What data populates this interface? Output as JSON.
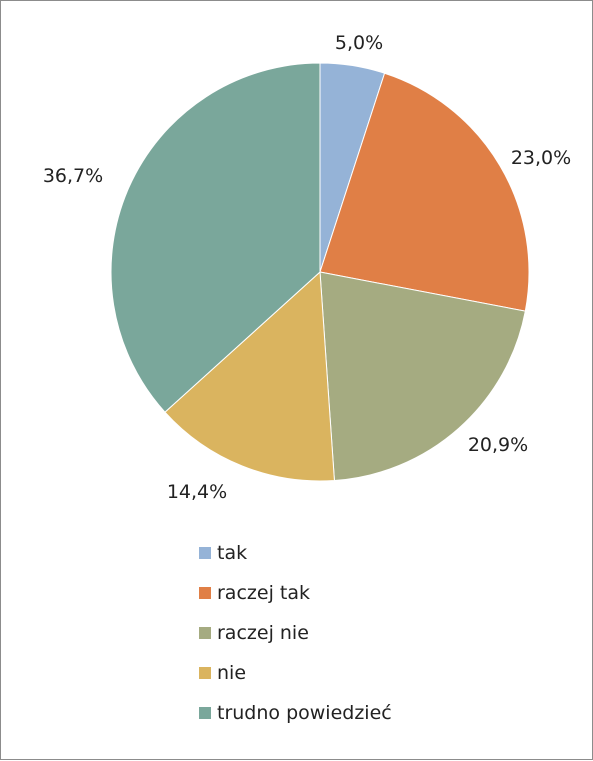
{
  "chart_data": {
    "type": "pie",
    "title": "",
    "start_angle_deg": 0,
    "direction": "clockwise",
    "legend_position": "bottom",
    "slices": [
      {
        "label": "tak",
        "value": 5.0,
        "display": "5,0%",
        "color": "#95B3D7"
      },
      {
        "label": "raczej tak",
        "value": 23.0,
        "display": "23,0%",
        "color": "#E07F46"
      },
      {
        "label": "raczej nie",
        "value": 20.9,
        "display": "20,9%",
        "color": "#A5AB81"
      },
      {
        "label": "nie",
        "value": 14.4,
        "display": "14,4%",
        "color": "#DAB45F"
      },
      {
        "label": "trudno powiedzieć",
        "value": 36.7,
        "display": "36,7%",
        "color": "#7AA79B"
      }
    ]
  }
}
